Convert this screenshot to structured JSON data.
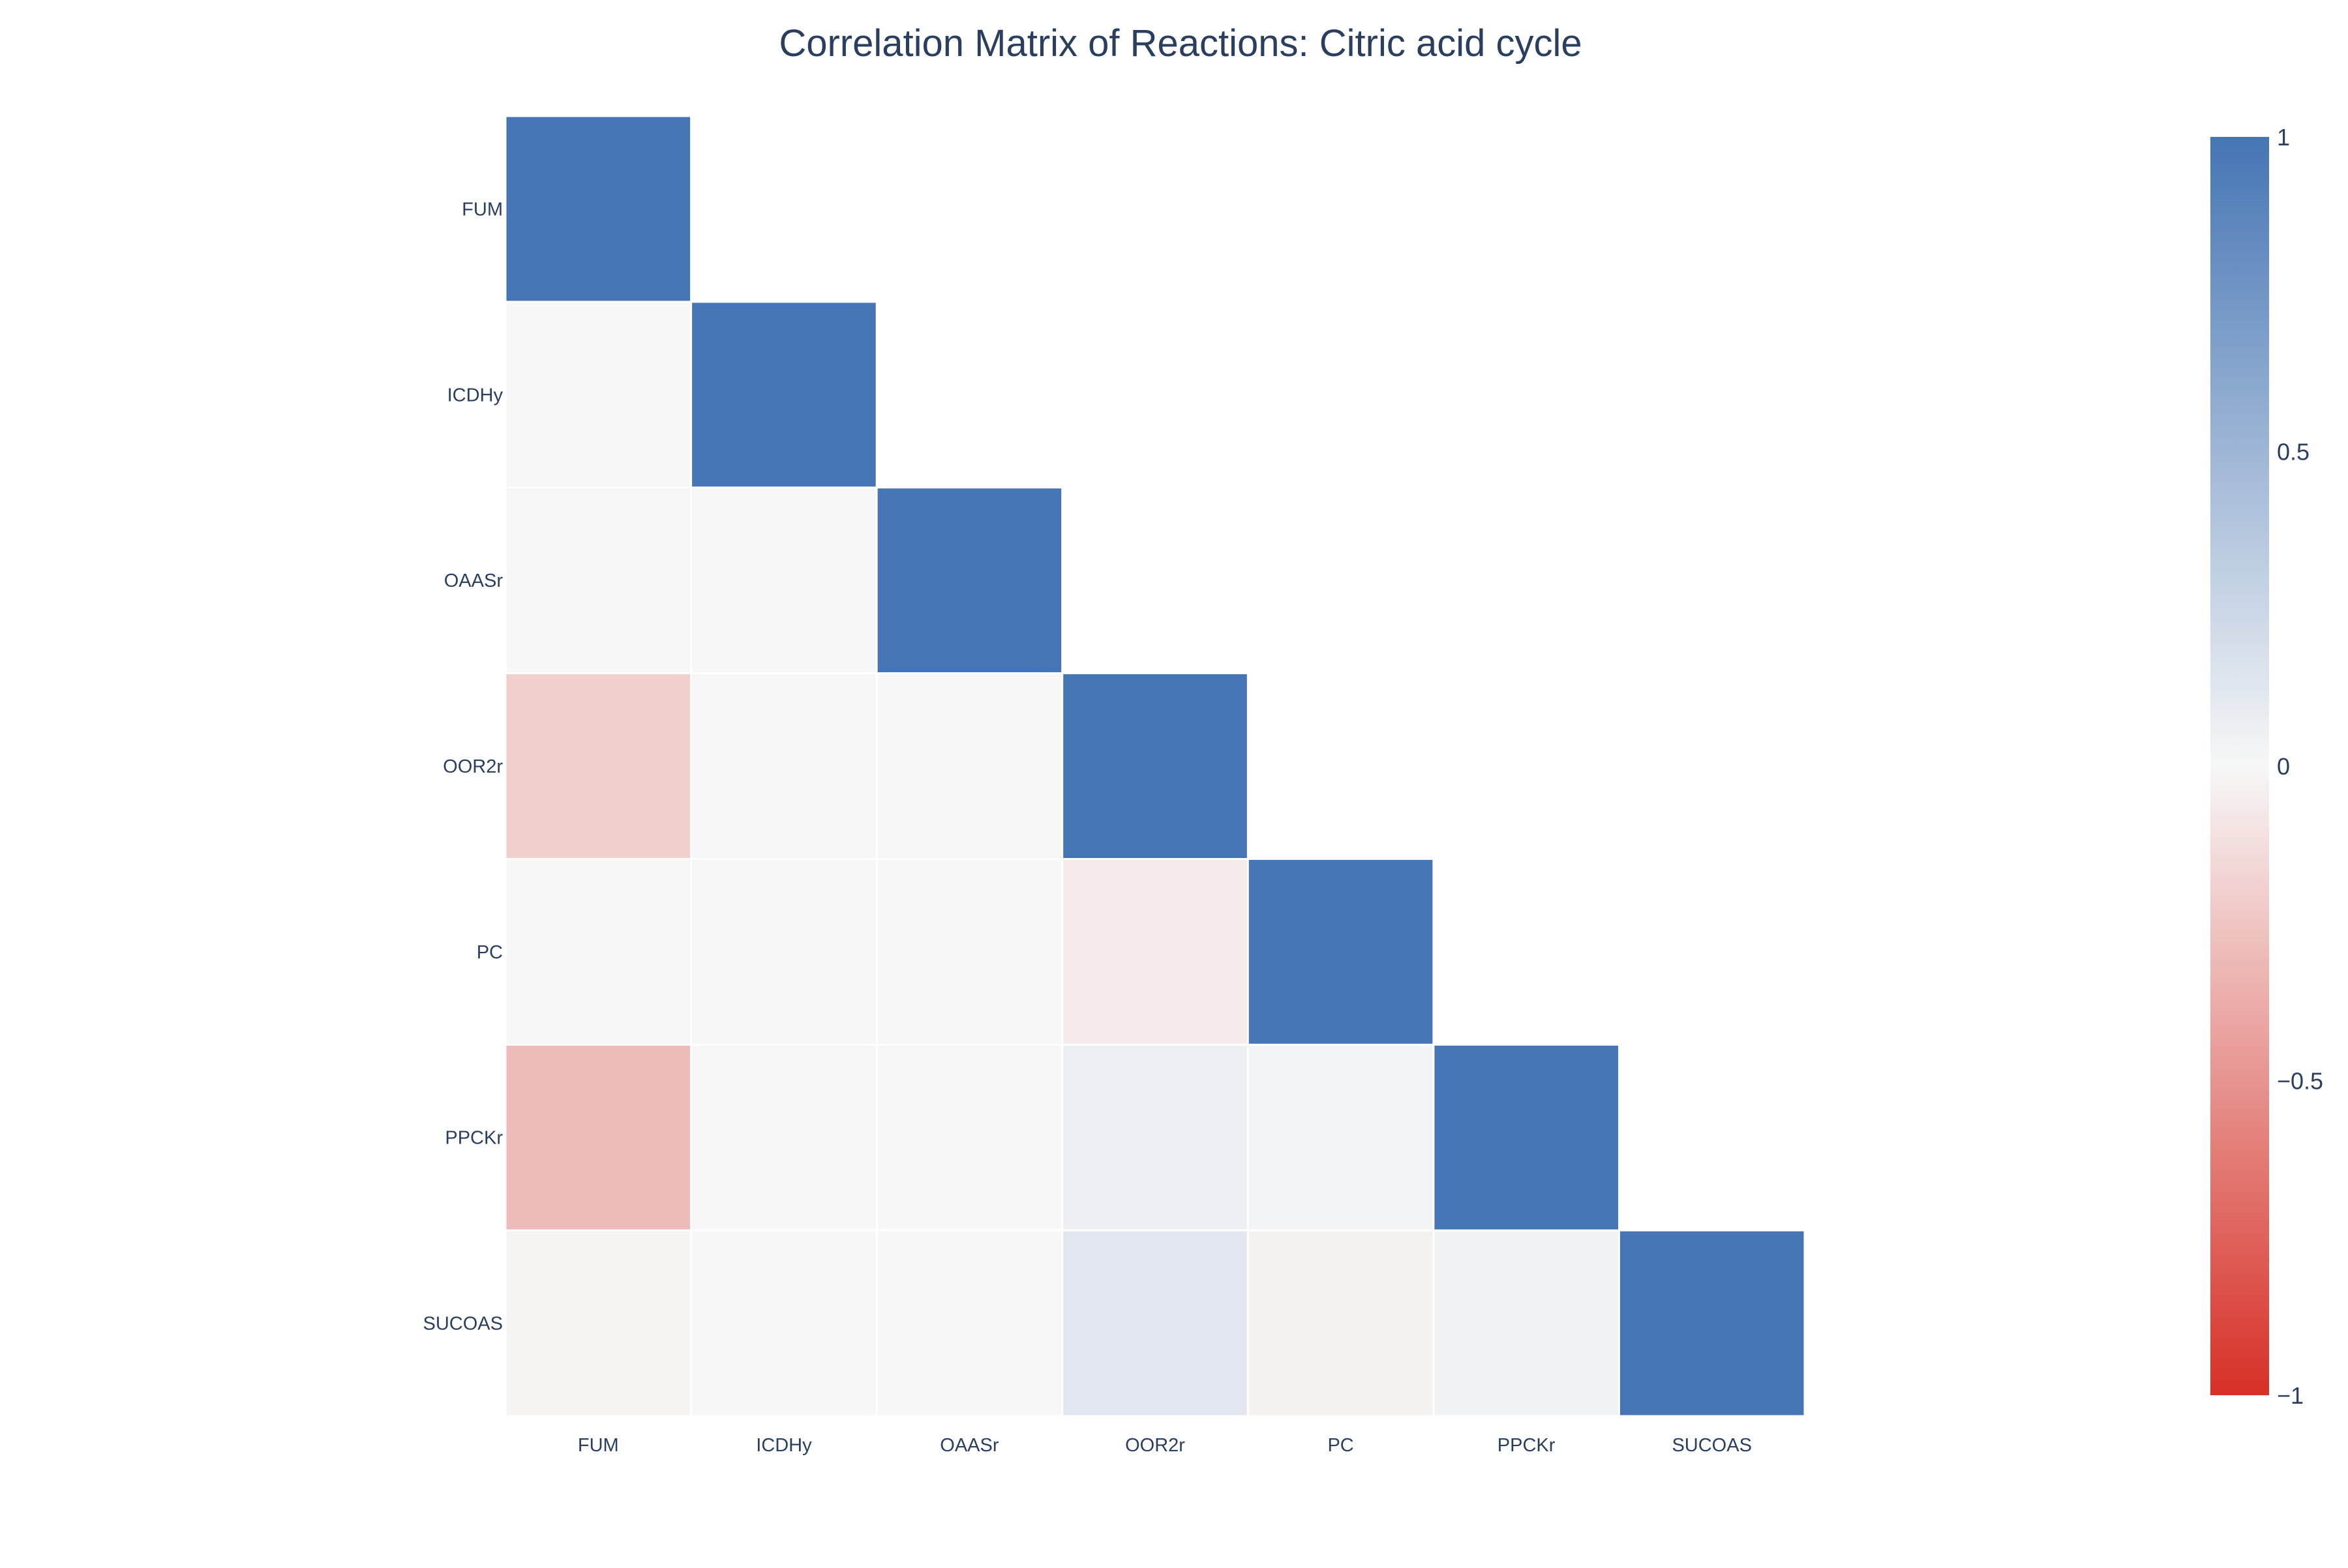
{
  "chart_data": {
    "type": "heatmap",
    "title": "Correlation Matrix of Reactions: Citric acid cycle",
    "x_categories": [
      "FUM",
      "ICDHy",
      "OAASr",
      "OOR2r",
      "PC",
      "PPCKr",
      "SUCOAS"
    ],
    "y_categories": [
      "FUM",
      "ICDHy",
      "OAASr",
      "OOR2r",
      "PC",
      "PPCKr",
      "SUCOAS"
    ],
    "z": [
      [
        1,
        null,
        null,
        null,
        null,
        null,
        null
      ],
      [
        0,
        1,
        null,
        null,
        null,
        null,
        null
      ],
      [
        0,
        0,
        1,
        null,
        null,
        null,
        null
      ],
      [
        -0.2,
        0,
        0,
        1,
        null,
        null,
        null
      ],
      [
        0,
        0,
        0,
        -0.06,
        1,
        null,
        null
      ],
      [
        -0.3,
        0,
        0,
        0.06,
        0.02,
        1,
        null
      ],
      [
        -0.02,
        0,
        0,
        0.12,
        -0.03,
        0.04,
        1
      ]
    ],
    "zmin": -1,
    "zmax": 1,
    "colorscale": [
      [
        0,
        "#d73027"
      ],
      [
        0.5,
        "#f7f7f7"
      ],
      [
        1,
        "#4575b4"
      ]
    ],
    "colorbar": {
      "tick_values": [
        1,
        0.5,
        0,
        -0.5,
        -1
      ],
      "tick_labels": [
        "1",
        "0.5",
        "0",
        "−0.5",
        "−1"
      ]
    },
    "grid": false,
    "legend": "colorbar-right"
  },
  "colors": {
    "title_text": "#2a3f5f",
    "tick_text": "#2a3f5f",
    "cell_gap": "#ffffff"
  }
}
